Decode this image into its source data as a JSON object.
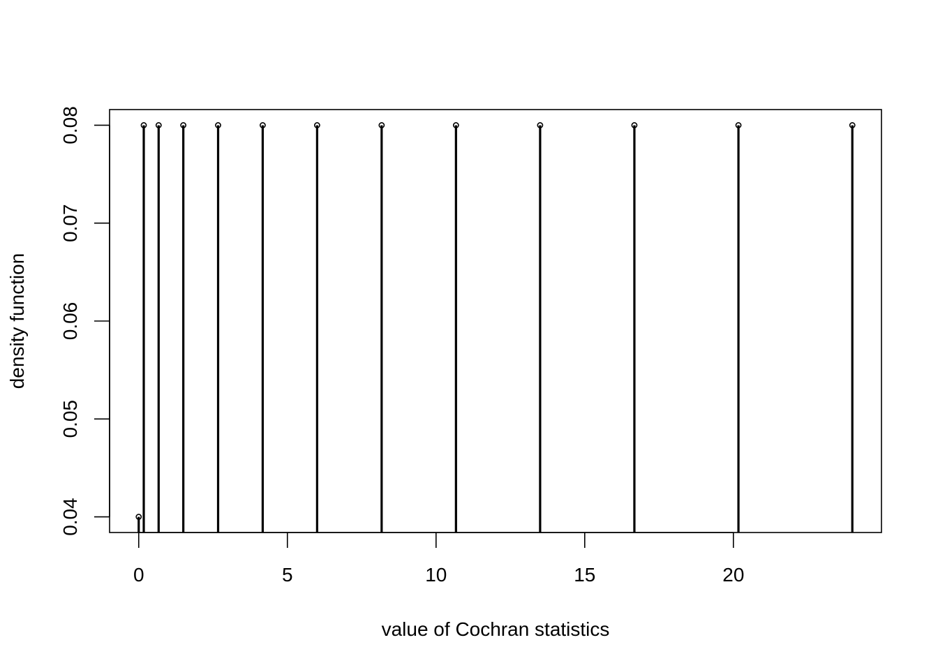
{
  "chart_data": {
    "type": "stem",
    "xlabel": "value of Cochran statistics",
    "ylabel": "density function",
    "xlim": [
      -0.98,
      24.98
    ],
    "ylim": [
      0.0384,
      0.0816
    ],
    "x_ticks": [
      0,
      5,
      10,
      15,
      20
    ],
    "x_tick_labels": [
      "0",
      "5",
      "10",
      "15",
      "20"
    ],
    "y_ticks": [
      0.04,
      0.05,
      0.06,
      0.07,
      0.08
    ],
    "y_tick_labels": [
      "0.04",
      "0.05",
      "0.06",
      "0.07",
      "0.08"
    ],
    "points": [
      {
        "x": 0.0,
        "y": 0.04
      },
      {
        "x": 0.17,
        "y": 0.08
      },
      {
        "x": 0.67,
        "y": 0.08
      },
      {
        "x": 1.5,
        "y": 0.08
      },
      {
        "x": 2.67,
        "y": 0.08
      },
      {
        "x": 4.17,
        "y": 0.08
      },
      {
        "x": 6.0,
        "y": 0.08
      },
      {
        "x": 8.17,
        "y": 0.08
      },
      {
        "x": 10.67,
        "y": 0.08
      },
      {
        "x": 13.5,
        "y": 0.08
      },
      {
        "x": 16.67,
        "y": 0.08
      },
      {
        "x": 20.17,
        "y": 0.08
      },
      {
        "x": 24.0,
        "y": 0.08
      }
    ],
    "grid": false,
    "legend": "none"
  }
}
